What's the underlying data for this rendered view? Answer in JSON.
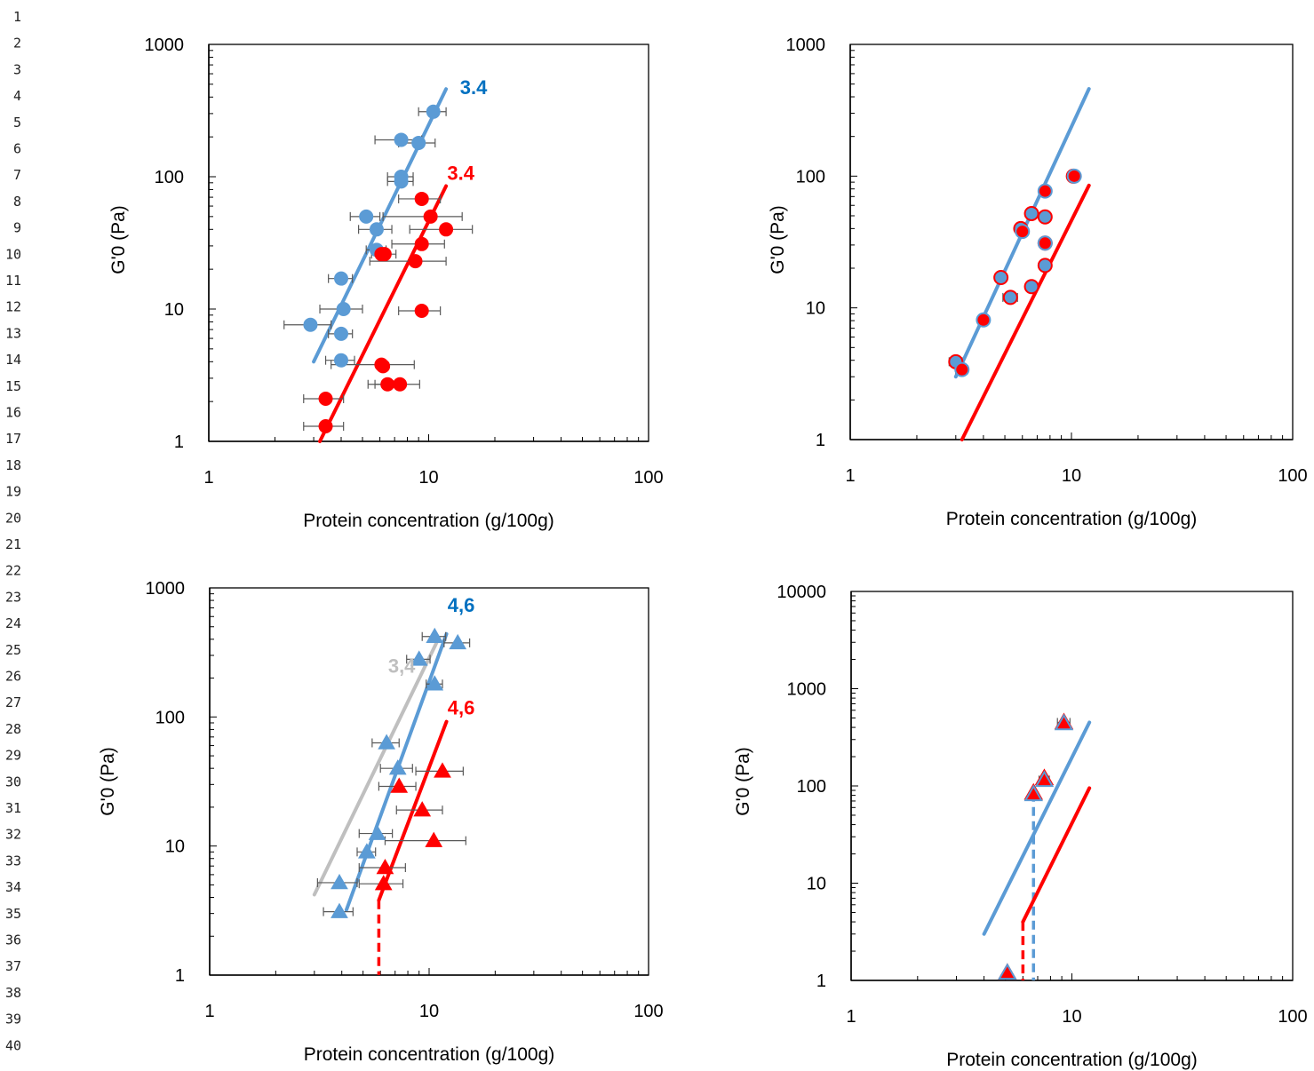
{
  "line_numbers": [
    "1",
    "2",
    "3",
    "4",
    "5",
    "6",
    "7",
    "8",
    "9",
    "10",
    "11",
    "12",
    "13",
    "14",
    "15",
    "16",
    "17",
    "18",
    "19",
    "20",
    "21",
    "22",
    "23",
    "24",
    "25",
    "26",
    "27",
    "28",
    "29",
    "30",
    "31",
    "32",
    "33",
    "34",
    "35",
    "36",
    "37",
    "38",
    "39",
    "40"
  ],
  "colors": {
    "blue": "#5B9BD5",
    "red": "#FF0000",
    "grey": "#BFBFBF",
    "blue_text": "#0070C0",
    "errorbar": "#595959"
  },
  "chart_data": [
    {
      "id": "chart-top-left",
      "type": "scatter",
      "xlabel": "Protein concentration (g/100g)",
      "ylabel": "G'0 (Pa)",
      "x_scale": "log",
      "y_scale": "log",
      "xlim": [
        1,
        100
      ],
      "ylim": [
        1,
        1000
      ],
      "x_ticks": [
        "1",
        "10",
        "100"
      ],
      "y_ticks": [
        "1",
        "10",
        "100",
        "1000"
      ],
      "marker": "circle",
      "series": [
        {
          "color": "blue",
          "points": [
            [
              10.5,
              310,
              1.5
            ],
            [
              7.5,
              190,
              1.8
            ],
            [
              9,
              180,
              1.7
            ],
            [
              7.5,
              100,
              1
            ],
            [
              7.5,
              92,
              1
            ],
            [
              5.2,
              50,
              0.8
            ],
            [
              5.8,
              40,
              1
            ],
            [
              5.8,
              28,
              0.6
            ],
            [
              4,
              17,
              0.5
            ],
            [
              4.1,
              10,
              0.9
            ],
            [
              2.9,
              7.6,
              0.7
            ],
            [
              4,
              6.5,
              0.5
            ],
            [
              4,
              4.1,
              0.6
            ]
          ],
          "fit": {
            "x": [
              3,
              12
            ],
            "y": [
              4,
              460
            ]
          }
        },
        {
          "color": "red",
          "points": [
            [
              9.3,
              68,
              2
            ],
            [
              10.2,
              50,
              4
            ],
            [
              12,
              40,
              3.8
            ],
            [
              6.3,
              26,
              0.8
            ],
            [
              6.1,
              26,
              0
            ],
            [
              9.3,
              31,
              2.5
            ],
            [
              8.7,
              23,
              3.3
            ],
            [
              9.3,
              9.7,
              2
            ],
            [
              6.1,
              3.8,
              2.5
            ],
            [
              6.2,
              3.7,
              0
            ],
            [
              6.5,
              2.7,
              1.2
            ],
            [
              7.4,
              2.7,
              1.7
            ],
            [
              3.4,
              2.1,
              0.7
            ],
            [
              3.4,
              1.3,
              0.7
            ]
          ],
          "fit": {
            "x": [
              3.2,
              12
            ],
            "y": [
              1,
              85
            ]
          }
        }
      ],
      "annotations": [
        {
          "text": "3.4",
          "color": "blue_text",
          "x": 16,
          "y": 420
        },
        {
          "text": "3.4",
          "color": "red",
          "x": 14,
          "y": 95
        }
      ]
    },
    {
      "id": "chart-top-right",
      "type": "scatter",
      "xlabel": "Protein concentration (g/100g)",
      "ylabel": "G'0 (Pa)",
      "x_scale": "log",
      "y_scale": "log",
      "xlim": [
        1,
        100
      ],
      "ylim": [
        1,
        1000
      ],
      "x_ticks": [
        "1",
        "10",
        "100"
      ],
      "y_ticks": [
        "1",
        "10",
        "100",
        "1000"
      ],
      "marker": "circle",
      "series": [
        {
          "color": "blue",
          "edge": "red",
          "points": [
            [
              3,
              3.9,
              0.2
            ],
            [
              4.8,
              17,
              0.2
            ],
            [
              6.6,
              52,
              0.3
            ],
            [
              7.6,
              49,
              0.2
            ],
            [
              7.6,
              21,
              0.2
            ],
            [
              6.6,
              14.5,
              0.3
            ],
            [
              5.3,
              12,
              0.4
            ],
            [
              7.6,
              31,
              0
            ],
            [
              5.9,
              40,
              0.3
            ],
            [
              10.2,
              100,
              0.5
            ]
          ],
          "fit": {
            "x": [
              3,
              12
            ],
            "y": [
              3,
              460
            ]
          }
        },
        {
          "color": "red",
          "edge": "blue",
          "points": [
            [
              3.2,
              3.4,
              0.2
            ],
            [
              4,
              8.1,
              0
            ],
            [
              6,
              38,
              0.3
            ],
            [
              7.6,
              77,
              0.2
            ],
            [
              7.6,
              31,
              0.2
            ],
            [
              10.3,
              100,
              0
            ]
          ],
          "fit": {
            "x": [
              3.2,
              12
            ],
            "y": [
              1,
              85
            ]
          }
        }
      ],
      "annotations": []
    },
    {
      "id": "chart-bottom-left",
      "type": "scatter",
      "xlabel": "Protein concentration (g/100g)",
      "ylabel": "G'0 (Pa)",
      "x_scale": "log",
      "y_scale": "log",
      "xlim": [
        1,
        100
      ],
      "ylim": [
        1,
        1000
      ],
      "x_ticks": [
        "1",
        "10",
        "100"
      ],
      "y_ticks": [
        "1",
        "10",
        "100",
        "1000"
      ],
      "marker": "triangle",
      "series": [
        {
          "color": "blue",
          "points": [
            [
              10.6,
              420,
              1.3
            ],
            [
              13.5,
              375,
              1.8
            ],
            [
              9,
              280,
              1.1
            ],
            [
              10.6,
              180,
              0.9
            ],
            [
              6.4,
              63,
              0.9
            ],
            [
              7.2,
              40,
              1.2
            ],
            [
              5.8,
              12.5,
              1
            ],
            [
              5.2,
              9,
              0.5
            ],
            [
              3.9,
              5.2,
              0.8
            ],
            [
              3.9,
              3.1,
              0.6
            ]
          ],
          "fit": {
            "x": [
              4.2,
              12
            ],
            "y": [
              3.2,
              440
            ]
          }
        },
        {
          "color": "red",
          "points": [
            [
              11.5,
              38,
              2.8
            ],
            [
              7.3,
              29,
              1.4
            ],
            [
              9.3,
              19,
              2.2
            ],
            [
              10.5,
              11,
              4.2
            ],
            [
              6.3,
              6.8,
              1.5
            ],
            [
              6.2,
              5.1,
              1.4
            ]
          ],
          "fit": {
            "x": [
              5.9,
              12
            ],
            "y": [
              3.8,
              92
            ]
          },
          "drop": {
            "x": 5.9,
            "y_from": 3.8,
            "y_to": 1
          }
        },
        {
          "color": "grey",
          "points": [],
          "fit": {
            "x": [
              3,
              11
            ],
            "y": [
              4.2,
              400
            ]
          }
        }
      ],
      "annotations": [
        {
          "text": "4,6",
          "color": "blue_text",
          "x": 14,
          "y": 650
        },
        {
          "text": "3,4",
          "color": "grey",
          "x": 7.5,
          "y": 220
        },
        {
          "text": "4,6",
          "color": "red",
          "x": 14,
          "y": 105
        }
      ]
    },
    {
      "id": "chart-bottom-right",
      "type": "scatter",
      "xlabel": "Protein concentration (g/100g)",
      "ylabel": "G'0 (Pa)",
      "x_scale": "log",
      "y_scale": "log",
      "xlim": [
        1,
        100
      ],
      "ylim": [
        1,
        10000
      ],
      "x_ticks": [
        "1",
        "10",
        "100"
      ],
      "y_ticks": [
        "1",
        "10",
        "100",
        "1000",
        "10000"
      ],
      "marker": "triangle",
      "series": [
        {
          "color": "blue",
          "edge": "red",
          "points": [
            [
              9.2,
              450,
              0.6
            ],
            [
              7.5,
              120,
              0
            ],
            [
              6.7,
              85,
              0
            ],
            [
              5.1,
              1.2,
              0
            ]
          ],
          "fit": {
            "x": [
              4,
              12
            ],
            "y": [
              3,
              450
            ]
          },
          "drop": {
            "x": 6.7,
            "y_from": 85,
            "y_to": 1
          }
        },
        {
          "color": "red",
          "edge": "blue",
          "points": [
            [
              9.2,
              440,
              0
            ],
            [
              7.5,
              115,
              0.4
            ],
            [
              6.7,
              82,
              0
            ],
            [
              5.1,
              1.2,
              0
            ]
          ],
          "fit": {
            "x": [
              6,
              12
            ],
            "y": [
              4,
              95
            ]
          },
          "drop": {
            "x": 6,
            "y_from": 4,
            "y_to": 1
          }
        }
      ],
      "annotations": []
    }
  ]
}
